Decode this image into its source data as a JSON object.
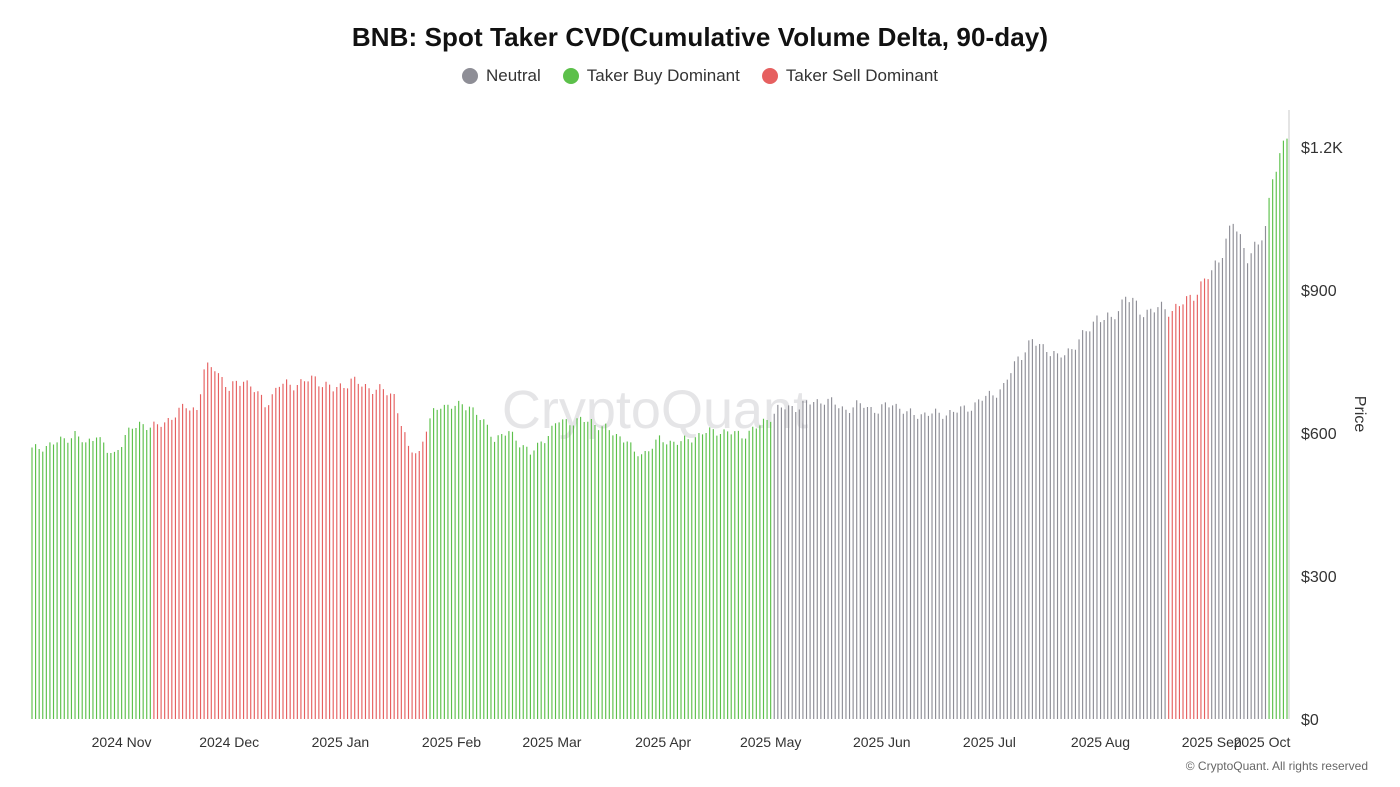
{
  "title": "BNB: Spot Taker CVD(Cumulative Volume Delta, 90-day)",
  "legend": [
    {
      "label": "Neutral",
      "color": "#8e8e96"
    },
    {
      "label": "Taker Buy Dominant",
      "color": "#5cc04a"
    },
    {
      "label": "Taker Sell Dominant",
      "color": "#e66060"
    }
  ],
  "watermark": "CryptoQuant",
  "footer": "© CryptoQuant. All rights reserved",
  "chart_data": {
    "type": "bar",
    "x_start_date": "2024-10-21",
    "y_axis": {
      "label": "Price",
      "ticks": [
        "$0",
        "$300",
        "$600",
        "$900",
        "$1.2K"
      ],
      "range": [
        0,
        1270
      ],
      "position": "right"
    },
    "x_tick_labels": [
      "2024 Nov",
      "2024 Dec",
      "2025 Jan",
      "2025 Feb",
      "2025 Mar",
      "2025 Apr",
      "2025 May",
      "2025 Jun",
      "2025 Jul",
      "2025 Aug",
      "2025 Sep",
      "2025 Oct"
    ],
    "regimes": [
      {
        "from": "2024-10-21",
        "to": "2024-11-23",
        "state": "Taker Buy Dominant"
      },
      {
        "from": "2024-11-24",
        "to": "2025-02-08",
        "state": "Taker Sell Dominant"
      },
      {
        "from": "2025-02-09",
        "to": "2025-05-15",
        "state": "Taker Buy Dominant"
      },
      {
        "from": "2025-05-16",
        "to": "2025-09-02",
        "state": "Neutral"
      },
      {
        "from": "2025-09-03",
        "to": "2025-09-14",
        "state": "Taker Sell Dominant"
      },
      {
        "from": "2025-09-15",
        "to": "2025-09-30",
        "state": "Neutral"
      },
      {
        "from": "2025-10-01",
        "to": "2025-10-06",
        "state": "Taker Buy Dominant"
      }
    ],
    "price_anchors": [
      [
        "2024-10-21",
        565
      ],
      [
        "2024-10-28",
        580
      ],
      [
        "2024-11-02",
        598
      ],
      [
        "2024-11-05",
        575
      ],
      [
        "2024-11-08",
        600
      ],
      [
        "2024-11-11",
        560
      ],
      [
        "2024-11-13",
        555
      ],
      [
        "2024-11-16",
        595
      ],
      [
        "2024-11-20",
        620
      ],
      [
        "2024-11-25",
        612
      ],
      [
        "2024-11-30",
        640
      ],
      [
        "2024-12-03",
        655
      ],
      [
        "2024-12-06",
        650
      ],
      [
        "2024-12-08",
        730
      ],
      [
        "2024-12-11",
        740
      ],
      [
        "2024-12-15",
        690
      ],
      [
        "2024-12-19",
        715
      ],
      [
        "2024-12-22",
        690
      ],
      [
        "2024-12-25",
        660
      ],
      [
        "2024-12-29",
        700
      ],
      [
        "2025-01-04",
        705
      ],
      [
        "2025-01-08",
        715
      ],
      [
        "2025-01-13",
        690
      ],
      [
        "2025-01-18",
        710
      ],
      [
        "2025-01-21",
        700
      ],
      [
        "2025-01-26",
        690
      ],
      [
        "2025-01-30",
        680
      ],
      [
        "2025-02-01",
        620
      ],
      [
        "2025-02-03",
        565
      ],
      [
        "2025-02-06",
        560
      ],
      [
        "2025-02-08",
        610
      ],
      [
        "2025-02-10",
        640
      ],
      [
        "2025-02-12",
        660
      ],
      [
        "2025-02-17",
        655
      ],
      [
        "2025-02-20",
        660
      ],
      [
        "2025-02-23",
        630
      ],
      [
        "2025-02-27",
        590
      ],
      [
        "2025-03-03",
        600
      ],
      [
        "2025-03-07",
        575
      ],
      [
        "2025-03-09",
        555
      ],
      [
        "2025-03-13",
        590
      ],
      [
        "2025-03-17",
        625
      ],
      [
        "2025-03-21",
        625
      ],
      [
        "2025-03-26",
        625
      ],
      [
        "2025-04-01",
        600
      ],
      [
        "2025-04-05",
        585
      ],
      [
        "2025-04-07",
        555
      ],
      [
        "2025-04-10",
        560
      ],
      [
        "2025-04-14",
        585
      ],
      [
        "2025-04-20",
        580
      ],
      [
        "2025-04-26",
        600
      ],
      [
        "2025-05-01",
        605
      ],
      [
        "2025-05-07",
        595
      ],
      [
        "2025-05-12",
        615
      ],
      [
        "2025-05-17",
        650
      ],
      [
        "2025-05-22",
        655
      ],
      [
        "2025-05-27",
        665
      ],
      [
        "2025-05-30",
        670
      ],
      [
        "2025-06-05",
        650
      ],
      [
        "2025-06-10",
        660
      ],
      [
        "2025-06-14",
        645
      ],
      [
        "2025-06-18",
        665
      ],
      [
        "2025-06-22",
        640
      ],
      [
        "2025-06-27",
        640
      ],
      [
        "2025-07-01",
        640
      ],
      [
        "2025-07-06",
        645
      ],
      [
        "2025-07-11",
        660
      ],
      [
        "2025-07-15",
        680
      ],
      [
        "2025-07-19",
        695
      ],
      [
        "2025-07-23",
        760
      ],
      [
        "2025-07-27",
        790
      ],
      [
        "2025-07-31",
        780
      ],
      [
        "2025-08-03",
        755
      ],
      [
        "2025-08-07",
        780
      ],
      [
        "2025-08-10",
        800
      ],
      [
        "2025-08-14",
        845
      ],
      [
        "2025-08-18",
        835
      ],
      [
        "2025-08-22",
        890
      ],
      [
        "2025-08-26",
        855
      ],
      [
        "2025-08-31",
        860
      ],
      [
        "2025-09-04",
        860
      ],
      [
        "2025-09-08",
        875
      ],
      [
        "2025-09-12",
        910
      ],
      [
        "2025-09-15",
        935
      ],
      [
        "2025-09-18",
        985
      ],
      [
        "2025-09-21",
        1040
      ],
      [
        "2025-09-25",
        975
      ],
      [
        "2025-09-28",
        990
      ],
      [
        "2025-09-30",
        1030
      ],
      [
        "2025-10-02",
        1150
      ],
      [
        "2025-10-04",
        1170
      ],
      [
        "2025-10-06",
        1225
      ]
    ]
  }
}
